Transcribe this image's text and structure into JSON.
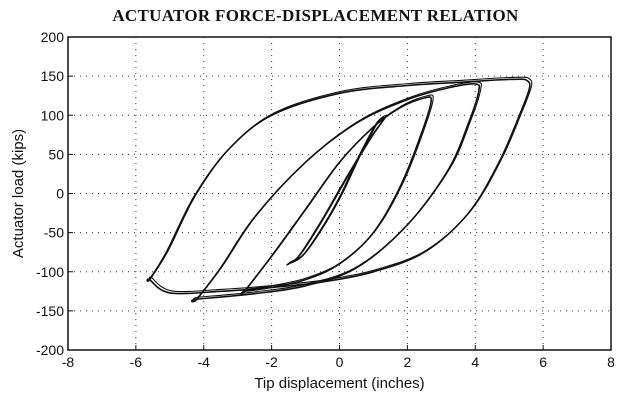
{
  "chart_data": {
    "type": "line",
    "title": "ACTUATOR FORCE-DISPLACEMENT RELATION",
    "xlabel": "Tip displacement (inches)",
    "ylabel": "Actuator load (kips)",
    "xlim": [
      -8,
      8
    ],
    "ylim": [
      -200,
      200
    ],
    "xticks": [
      -8,
      -6,
      -4,
      -2,
      0,
      2,
      4,
      6,
      8
    ],
    "yticks": [
      -200,
      -150,
      -100,
      -50,
      0,
      50,
      100,
      150,
      200
    ],
    "grid": "dotted",
    "legend": "none",
    "series": [
      {
        "x": [
          -1.5,
          -1.2,
          -0.6,
          0.2,
          0.9,
          1.3,
          1.1,
          0.6,
          0.0,
          -0.6,
          -1.1,
          -1.5
        ],
        "y": [
          -90,
          -80,
          -40,
          20,
          70,
          95,
          90,
          50,
          -5,
          -50,
          -80,
          -90
        ]
      },
      {
        "x": [
          -2.8,
          -2.0,
          -1.0,
          0.0,
          1.0,
          1.8,
          2.5,
          2.7,
          2.4,
          1.8,
          1.0,
          0.0,
          -1.0,
          -2.0,
          -2.8
        ],
        "y": [
          -125,
          -80,
          -20,
          40,
          85,
          110,
          122,
          118,
          75,
          10,
          -50,
          -90,
          -110,
          -120,
          -125
        ]
      },
      {
        "x": [
          -4.2,
          -3.5,
          -2.5,
          -1.0,
          0.5,
          2.0,
          3.2,
          4.0,
          4.1,
          3.8,
          3.2,
          2.0,
          0.5,
          -1.0,
          -2.5,
          -4.2
        ],
        "y": [
          -135,
          -95,
          -30,
          40,
          90,
          120,
          135,
          140,
          130,
          90,
          30,
          -40,
          -95,
          -118,
          -128,
          -135
        ]
      },
      {
        "x": [
          -5.6,
          -5.1,
          -4.3,
          -3.3,
          -2.0,
          0.0,
          2.0,
          3.5,
          4.6,
          5.2,
          5.5,
          5.6,
          5.3,
          4.7,
          3.8,
          2.5,
          1.0,
          -0.5,
          -2.0,
          -3.5,
          -5.0,
          -5.6
        ],
        "y": [
          -110,
          -75,
          -5,
          55,
          100,
          128,
          138,
          142,
          145,
          146,
          145,
          135,
          100,
          40,
          -25,
          -75,
          -100,
          -113,
          -120,
          -125,
          -127,
          -110
        ]
      }
    ]
  }
}
